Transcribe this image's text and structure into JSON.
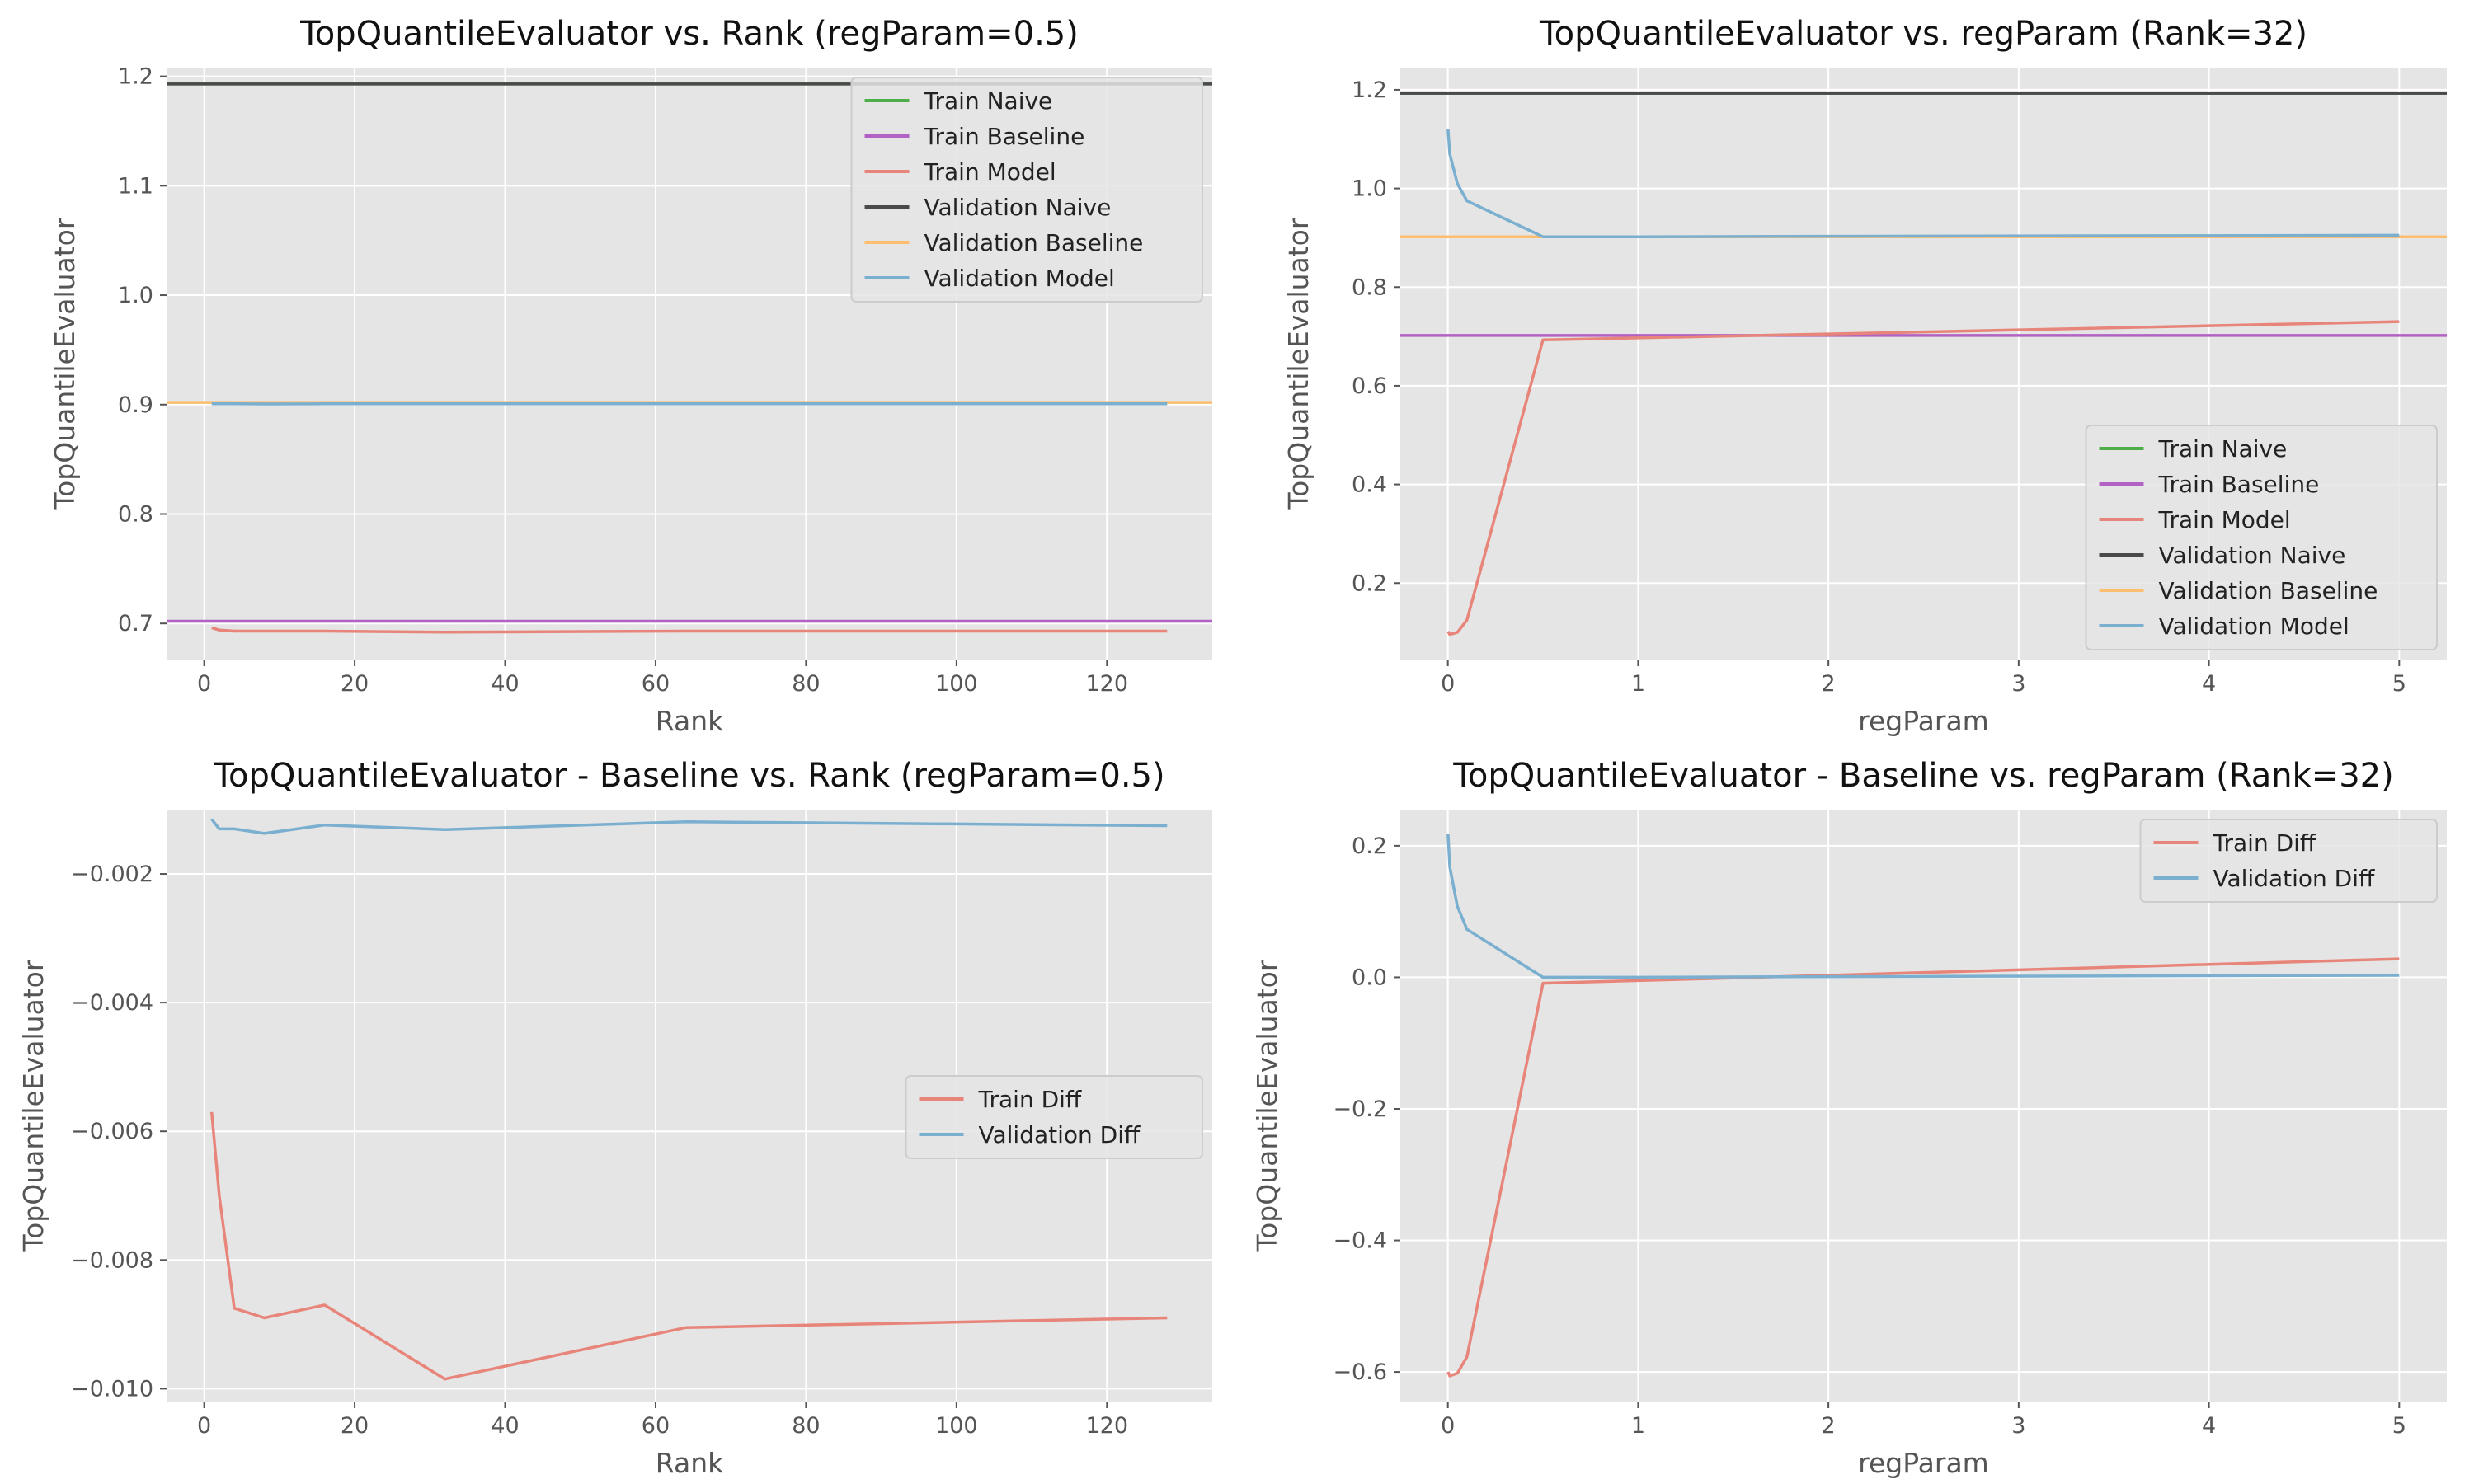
{
  "chart_data": [
    {
      "type": "line",
      "title": "TopQuantileEvaluator vs. Rank (regParam=0.5)",
      "xlabel": "Rank",
      "ylabel": "TopQuantileEvaluator",
      "xlim": [
        -5,
        134
      ],
      "ylim": [
        0.667,
        1.208
      ],
      "xticks": [
        0,
        20,
        40,
        60,
        80,
        100,
        120
      ],
      "yticks": [
        0.7,
        0.8,
        0.9,
        1.0,
        1.1,
        1.2
      ],
      "ytick_labels": [
        "0.7",
        "0.8",
        "0.9",
        "1.0",
        "1.1",
        "1.2"
      ],
      "grid": true,
      "legend_position": "upper right",
      "series": [
        {
          "name": "Train Naive",
          "color": "#4dae4a",
          "kind": "hline",
          "y": 1.193
        },
        {
          "name": "Train Baseline",
          "color": "#b261c4",
          "kind": "hline",
          "y": 0.702
        },
        {
          "name": "Train Model",
          "color": "#e8857a",
          "x": [
            1,
            2,
            4,
            8,
            16,
            32,
            64,
            128
          ],
          "y": [
            0.696,
            0.694,
            0.693,
            0.693,
            0.693,
            0.692,
            0.693,
            0.693
          ]
        },
        {
          "name": "Validation Naive",
          "color": "#4a4a4a",
          "kind": "hline",
          "y": 1.193
        },
        {
          "name": "Validation Baseline",
          "color": "#fdbf6f",
          "kind": "hline",
          "y": 0.902
        },
        {
          "name": "Validation Model",
          "color": "#7aafcf",
          "x": [
            1,
            2,
            4,
            8,
            16,
            32,
            64,
            128
          ],
          "y": [
            0.9008,
            0.9007,
            0.9007,
            0.9006,
            0.9007,
            0.9007,
            0.9008,
            0.9008
          ]
        }
      ]
    },
    {
      "type": "line",
      "title": "TopQuantileEvaluator vs. regParam (Rank=32)",
      "xlabel": "regParam",
      "ylabel": "TopQuantileEvaluator",
      "xlim": [
        -0.25,
        5.25
      ],
      "ylim": [
        0.045,
        1.245
      ],
      "xticks": [
        0,
        1,
        2,
        3,
        4,
        5
      ],
      "yticks": [
        0.2,
        0.4,
        0.6,
        0.8,
        1.0,
        1.2
      ],
      "ytick_labels": [
        "0.2",
        "0.4",
        "0.6",
        "0.8",
        "1.0",
        "1.2"
      ],
      "grid": true,
      "legend_position": "lower right",
      "series": [
        {
          "name": "Train Naive",
          "color": "#4dae4a",
          "kind": "hline",
          "y": 1.193
        },
        {
          "name": "Train Baseline",
          "color": "#b261c4",
          "kind": "hline",
          "y": 0.702
        },
        {
          "name": "Train Model",
          "color": "#e8857a",
          "x": [
            0.001,
            0.01,
            0.05,
            0.1,
            0.5,
            1,
            2,
            5
          ],
          "y": [
            0.102,
            0.096,
            0.1,
            0.125,
            0.693,
            0.697,
            0.705,
            0.73
          ]
        },
        {
          "name": "Validation Naive",
          "color": "#4a4a4a",
          "kind": "hline",
          "y": 1.193
        },
        {
          "name": "Validation Baseline",
          "color": "#fdbf6f",
          "kind": "hline",
          "y": 0.902
        },
        {
          "name": "Validation Model",
          "color": "#7aafcf",
          "x": [
            0.001,
            0.01,
            0.05,
            0.1,
            0.5,
            1,
            2,
            5
          ],
          "y": [
            1.12,
            1.07,
            1.01,
            0.975,
            0.902,
            0.902,
            0.903,
            0.905
          ]
        }
      ]
    },
    {
      "type": "line",
      "title": "TopQuantileEvaluator - Baseline vs. Rank (regParam=0.5)",
      "xlabel": "Rank",
      "ylabel": "TopQuantileEvaluator",
      "xlim": [
        -5,
        134
      ],
      "ylim": [
        -0.0102,
        -0.001
      ],
      "xticks": [
        0,
        20,
        40,
        60,
        80,
        100,
        120
      ],
      "yticks": [
        -0.01,
        -0.008,
        -0.006,
        -0.004,
        -0.002
      ],
      "ytick_labels": [
        "−0.010",
        "−0.008",
        "−0.006",
        "−0.004",
        "−0.002"
      ],
      "grid": true,
      "legend_position": "center right",
      "series": [
        {
          "name": "Train Diff",
          "color": "#e8857a",
          "x": [
            1,
            2,
            4,
            8,
            16,
            32,
            64,
            128
          ],
          "y": [
            -0.0057,
            -0.007,
            -0.00875,
            -0.0089,
            -0.0087,
            -0.00985,
            -0.00905,
            -0.0089
          ]
        },
        {
          "name": "Validation Diff",
          "color": "#7aafcf",
          "x": [
            1,
            2,
            4,
            8,
            16,
            32,
            64,
            128
          ],
          "y": [
            -0.00115,
            -0.0013,
            -0.0013,
            -0.00137,
            -0.00124,
            -0.00131,
            -0.00119,
            -0.00125
          ]
        }
      ]
    },
    {
      "type": "line",
      "title": "TopQuantileEvaluator - Baseline vs. regParam (Rank=32)",
      "xlabel": "regParam",
      "ylabel": "TopQuantileEvaluator",
      "xlim": [
        -0.25,
        5.25
      ],
      "ylim": [
        -0.645,
        0.255
      ],
      "xticks": [
        0,
        1,
        2,
        3,
        4,
        5
      ],
      "yticks": [
        -0.6,
        -0.4,
        -0.2,
        0.0,
        0.2
      ],
      "ytick_labels": [
        "−0.6",
        "−0.4",
        "−0.2",
        "0.0",
        "0.2"
      ],
      "grid": true,
      "legend_position": "upper right",
      "series": [
        {
          "name": "Train Diff",
          "color": "#e8857a",
          "x": [
            0.001,
            0.01,
            0.05,
            0.1,
            0.5,
            1,
            2,
            5
          ],
          "y": [
            -0.6,
            -0.606,
            -0.602,
            -0.577,
            -0.009,
            -0.005,
            0.003,
            0.028
          ]
        },
        {
          "name": "Validation Diff",
          "color": "#7aafcf",
          "x": [
            0.001,
            0.01,
            0.05,
            0.1,
            0.5,
            1,
            2,
            5
          ],
          "y": [
            0.218,
            0.168,
            0.108,
            0.073,
            0.0,
            0.0,
            0.001,
            0.003
          ]
        }
      ]
    }
  ]
}
